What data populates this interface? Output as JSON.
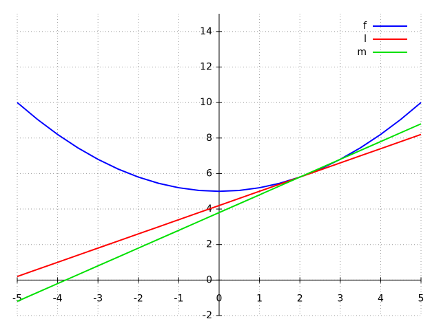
{
  "chart_data": {
    "type": "line",
    "x": [
      -5,
      -4.5,
      -4,
      -3.5,
      -3,
      -2.5,
      -2,
      -1.5,
      -1,
      -0.5,
      0,
      0.5,
      1,
      1.5,
      2,
      2.5,
      3,
      3.5,
      4,
      4.5,
      5
    ],
    "series": [
      {
        "name": "f",
        "color": "#0000ff",
        "values": [
          10,
          9.05,
          8.2,
          7.45,
          6.8,
          6.25,
          5.8,
          5.45,
          5.2,
          5.05,
          5,
          5.05,
          5.2,
          5.45,
          5.8,
          6.25,
          6.8,
          7.45,
          8.2,
          9.05,
          10
        ]
      },
      {
        "name": "l",
        "color": "#ff0000",
        "values": [
          0.2,
          0.6,
          1.0,
          1.4,
          1.8,
          2.2,
          2.6,
          3.0,
          3.4,
          3.8,
          4.2,
          4.6,
          5.0,
          5.4,
          5.8,
          6.2,
          6.6,
          7.0,
          7.4,
          7.8,
          8.2
        ]
      },
      {
        "name": "m",
        "color": "#00e000",
        "values": [
          -1.2,
          -0.7,
          -0.2,
          0.3,
          0.8,
          1.3,
          1.8,
          2.3,
          2.8,
          3.3,
          3.8,
          4.3,
          4.8,
          5.3,
          5.8,
          6.3,
          6.8,
          7.3,
          7.8,
          8.3,
          8.8
        ]
      }
    ],
    "xlim": [
      -5,
      5
    ],
    "ylim": [
      -2,
      15
    ],
    "xticks": [
      -5,
      -4,
      -3,
      -2,
      -1,
      0,
      1,
      2,
      3,
      4,
      5
    ],
    "yticks": [
      -2,
      0,
      2,
      4,
      6,
      8,
      10,
      12,
      14
    ],
    "grid": true,
    "legend": "top-right"
  }
}
